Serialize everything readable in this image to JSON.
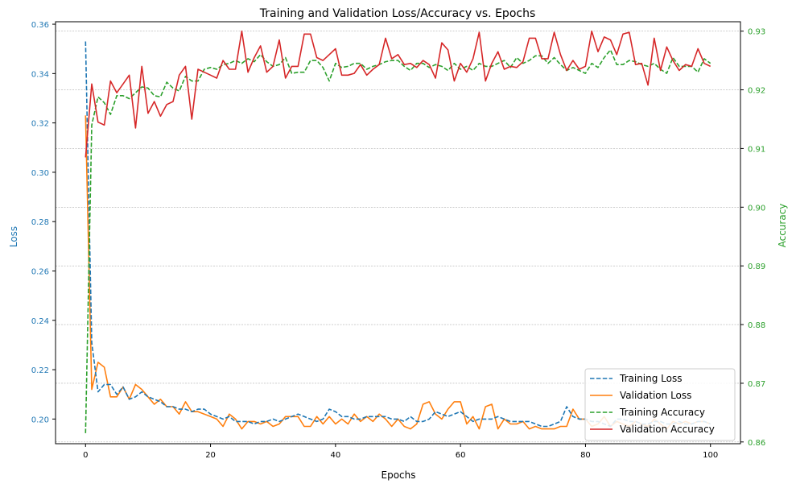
{
  "chart_data": {
    "type": "line",
    "title": "Training and Validation Loss/Accuracy vs. Epochs",
    "xlabel": "Epochs",
    "ylabel": "Loss",
    "ylabel_right": "Accuracy",
    "xlim": [
      -4.8,
      104.8
    ],
    "ylim": [
      0.19,
      0.361
    ],
    "ylim_right": [
      0.8597,
      0.9316
    ],
    "xticks": [
      "0",
      "20",
      "40",
      "60",
      "80",
      "100"
    ],
    "yticks": [
      "0.20",
      "0.22",
      "0.24",
      "0.26",
      "0.28",
      "0.30",
      "0.32",
      "0.34",
      "0.36"
    ],
    "yticks_right": [
      "0.86",
      "0.87",
      "0.88",
      "0.89",
      "0.90",
      "0.91",
      "0.92",
      "0.93"
    ],
    "grid": "horizontal, right axis",
    "legend_position": "bottom-right",
    "colors": {
      "training_loss": "#1f77b4",
      "validation_loss": "#ff7f0e",
      "training_accuracy": "#2ca02c",
      "validation_accuracy": "#d62728",
      "left_axis": "#1f77b4",
      "right_axis": "#2ca02c"
    },
    "series": [
      {
        "name": "Training Loss",
        "axis": "left",
        "style": "dashed",
        "values": [
          0.353,
          0.231,
          0.211,
          0.214,
          0.214,
          0.21,
          0.213,
          0.208,
          0.209,
          0.211,
          0.209,
          0.208,
          0.207,
          0.205,
          0.205,
          0.204,
          0.204,
          0.203,
          0.204,
          0.204,
          0.202,
          0.201,
          0.2,
          0.201,
          0.199,
          0.199,
          0.199,
          0.198,
          0.199,
          0.199,
          0.2,
          0.199,
          0.2,
          0.201,
          0.202,
          0.201,
          0.2,
          0.199,
          0.2,
          0.204,
          0.203,
          0.201,
          0.201,
          0.2,
          0.2,
          0.201,
          0.201,
          0.201,
          0.201,
          0.2,
          0.2,
          0.199,
          0.201,
          0.199,
          0.199,
          0.2,
          0.203,
          0.202,
          0.201,
          0.202,
          0.203,
          0.201,
          0.199,
          0.2,
          0.2,
          0.2,
          0.201,
          0.2,
          0.199,
          0.199,
          0.199,
          0.199,
          0.198,
          0.197,
          0.197,
          0.198,
          0.199,
          0.205,
          0.201,
          0.2,
          0.2,
          0.199,
          0.199,
          0.198,
          0.197,
          0.2,
          0.2,
          0.199,
          0.199,
          0.198,
          0.198,
          0.199,
          0.199,
          0.198,
          0.198,
          0.199,
          0.198,
          0.198,
          0.199,
          0.199,
          0.198
        ]
      },
      {
        "name": "Validation Loss",
        "axis": "left",
        "style": "solid",
        "values": [
          0.323,
          0.212,
          0.223,
          0.221,
          0.209,
          0.209,
          0.213,
          0.208,
          0.214,
          0.212,
          0.209,
          0.206,
          0.208,
          0.205,
          0.205,
          0.202,
          0.207,
          0.203,
          0.203,
          0.202,
          0.201,
          0.2,
          0.197,
          0.202,
          0.2,
          0.196,
          0.199,
          0.199,
          0.198,
          0.199,
          0.197,
          0.198,
          0.201,
          0.201,
          0.201,
          0.197,
          0.197,
          0.201,
          0.198,
          0.201,
          0.198,
          0.2,
          0.198,
          0.202,
          0.199,
          0.201,
          0.199,
          0.202,
          0.2,
          0.197,
          0.2,
          0.197,
          0.196,
          0.198,
          0.206,
          0.207,
          0.202,
          0.2,
          0.204,
          0.207,
          0.207,
          0.198,
          0.201,
          0.196,
          0.205,
          0.206,
          0.196,
          0.2,
          0.198,
          0.198,
          0.199,
          0.196,
          0.197,
          0.196,
          0.196,
          0.196,
          0.197,
          0.197,
          0.204,
          0.2,
          0.2,
          0.197,
          0.198,
          0.201,
          0.197,
          0.199,
          0.198,
          0.197,
          0.199,
          0.198,
          0.197,
          0.2,
          0.198,
          0.196,
          0.199,
          0.198,
          0.199,
          0.198,
          0.199,
          0.199,
          0.198
        ]
      },
      {
        "name": "Training Accuracy",
        "axis": "right",
        "style": "dashed",
        "values": [
          0.8615,
          0.914,
          0.9188,
          0.9178,
          0.9158,
          0.919,
          0.919,
          0.9185,
          0.9195,
          0.9205,
          0.9203,
          0.919,
          0.9188,
          0.9213,
          0.9203,
          0.9198,
          0.9223,
          0.9215,
          0.9215,
          0.9235,
          0.9238,
          0.9235,
          0.9243,
          0.9245,
          0.925,
          0.9245,
          0.9253,
          0.9248,
          0.926,
          0.9248,
          0.924,
          0.9243,
          0.9255,
          0.9228,
          0.923,
          0.923,
          0.925,
          0.925,
          0.9238,
          0.9215,
          0.9245,
          0.9238,
          0.924,
          0.9245,
          0.9245,
          0.9235,
          0.924,
          0.9243,
          0.9248,
          0.925,
          0.925,
          0.924,
          0.9233,
          0.9245,
          0.9245,
          0.9238,
          0.9243,
          0.924,
          0.9233,
          0.9245,
          0.9235,
          0.924,
          0.9233,
          0.9245,
          0.924,
          0.924,
          0.9245,
          0.925,
          0.9238,
          0.9255,
          0.9245,
          0.925,
          0.9258,
          0.9258,
          0.9245,
          0.9255,
          0.9243,
          0.9233,
          0.9238,
          0.9233,
          0.9228,
          0.9245,
          0.9238,
          0.9255,
          0.9268,
          0.9243,
          0.9243,
          0.925,
          0.9248,
          0.9243,
          0.924,
          0.9245,
          0.9235,
          0.9228,
          0.9255,
          0.924,
          0.924,
          0.924,
          0.923,
          0.9253,
          0.9245
        ]
      },
      {
        "name": "Validation Accuracy",
        "axis": "right",
        "style": "solid",
        "values": [
          0.9085,
          0.921,
          0.9145,
          0.914,
          0.9215,
          0.9195,
          0.921,
          0.9225,
          0.9135,
          0.924,
          0.916,
          0.918,
          0.9155,
          0.9175,
          0.918,
          0.9225,
          0.924,
          0.915,
          0.9235,
          0.923,
          0.9225,
          0.922,
          0.925,
          0.9235,
          0.9235,
          0.93,
          0.923,
          0.9255,
          0.9275,
          0.923,
          0.924,
          0.9285,
          0.922,
          0.924,
          0.924,
          0.9295,
          0.9295,
          0.9255,
          0.925,
          0.926,
          0.927,
          0.9225,
          0.9225,
          0.9228,
          0.9243,
          0.9225,
          0.9235,
          0.9243,
          0.9288,
          0.9253,
          0.926,
          0.9243,
          0.9245,
          0.9238,
          0.925,
          0.9243,
          0.922,
          0.928,
          0.9268,
          0.9215,
          0.9245,
          0.923,
          0.9253,
          0.9298,
          0.9215,
          0.9245,
          0.9265,
          0.9235,
          0.924,
          0.9238,
          0.9248,
          0.9288,
          0.9288,
          0.9253,
          0.9253,
          0.9298,
          0.926,
          0.9233,
          0.925,
          0.9235,
          0.924,
          0.93,
          0.9265,
          0.929,
          0.9285,
          0.926,
          0.9295,
          0.9298,
          0.9243,
          0.9245,
          0.9208,
          0.9288,
          0.9233,
          0.9273,
          0.925,
          0.9233,
          0.9243,
          0.924,
          0.927,
          0.9245,
          0.924
        ]
      }
    ]
  }
}
